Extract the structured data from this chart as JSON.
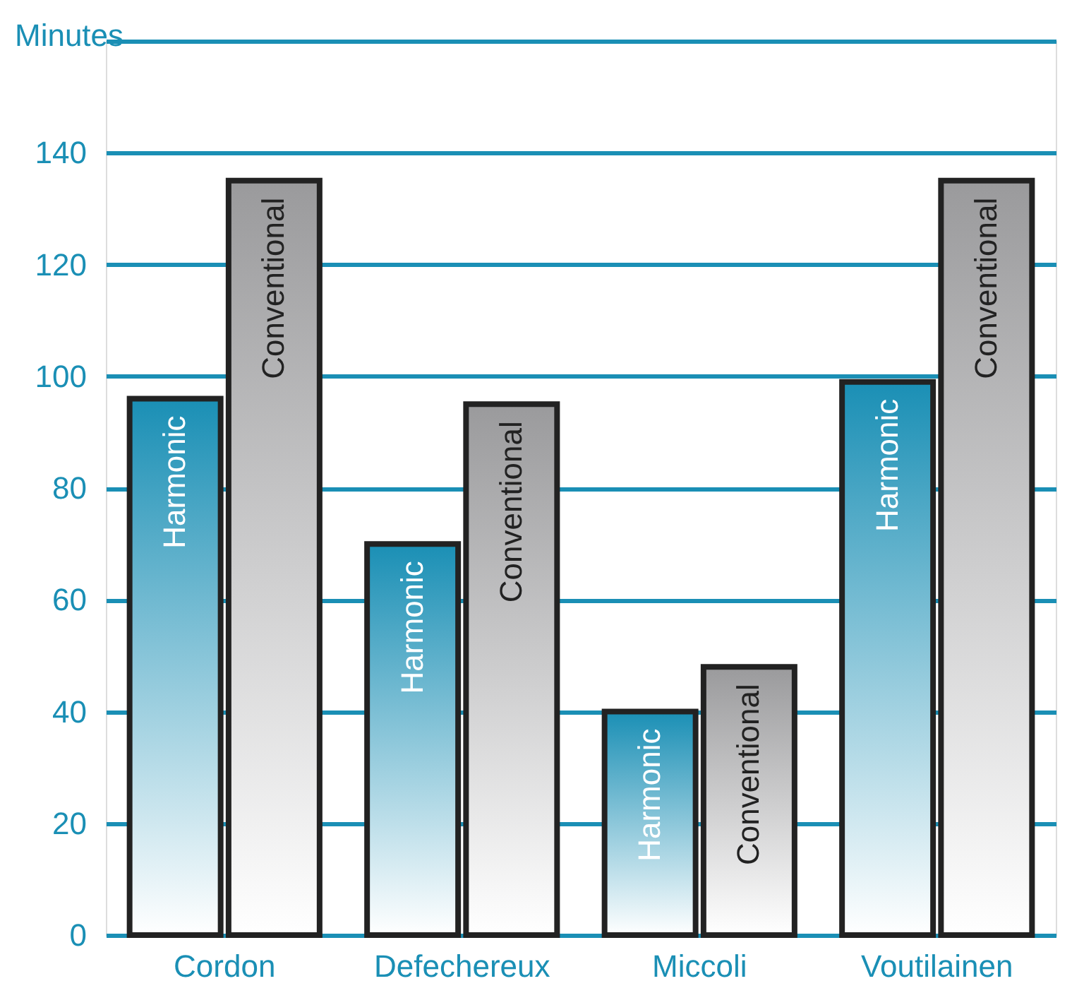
{
  "chart_data": {
    "type": "bar",
    "ylabel": "Minutes",
    "categories": [
      "Cordon",
      "Defechereux",
      "Miccoli",
      "Voutilainen"
    ],
    "series": [
      {
        "name": "Harmonic",
        "color": "#1a8fb5",
        "values": [
          96,
          70,
          40,
          99
        ]
      },
      {
        "name": "Conventional",
        "color": "#9a9a9c",
        "values": [
          135,
          95,
          48,
          135
        ]
      }
    ],
    "ylim": [
      0,
      160
    ],
    "yticks": [
      0,
      20,
      40,
      60,
      80,
      100,
      120,
      140,
      {
        "value": 160,
        "label": null
      }
    ],
    "grid": "y"
  }
}
